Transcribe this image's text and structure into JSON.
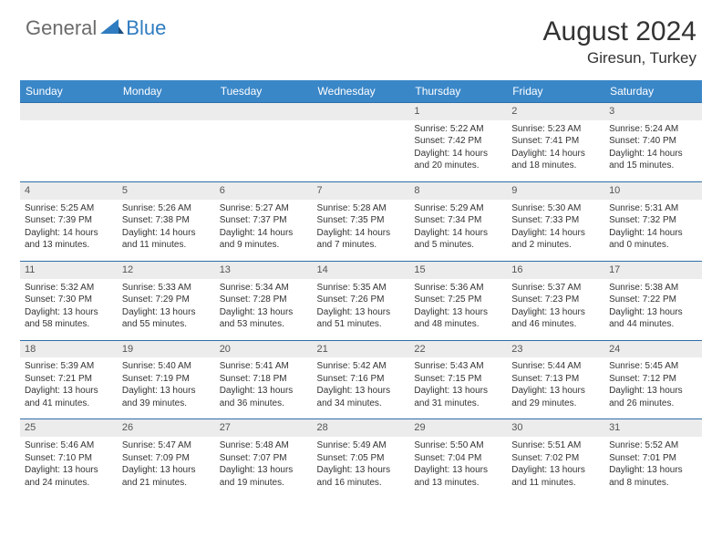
{
  "logo": {
    "general": "General",
    "blue": "Blue"
  },
  "header": {
    "title": "August 2024",
    "location": "Giresun, Turkey"
  },
  "colors": {
    "header_bg": "#3a87c8",
    "week_border": "#2f6ea8",
    "daynum_bg": "#ececec",
    "text": "#333333",
    "logo_gray": "#6b6b6b",
    "logo_blue": "#2f7cc0"
  },
  "day_names": [
    "Sunday",
    "Monday",
    "Tuesday",
    "Wednesday",
    "Thursday",
    "Friday",
    "Saturday"
  ],
  "weeks": [
    [
      null,
      null,
      null,
      null,
      {
        "n": "1",
        "sr": "5:22 AM",
        "ss": "7:42 PM",
        "dl": "14 hours and 20 minutes."
      },
      {
        "n": "2",
        "sr": "5:23 AM",
        "ss": "7:41 PM",
        "dl": "14 hours and 18 minutes."
      },
      {
        "n": "3",
        "sr": "5:24 AM",
        "ss": "7:40 PM",
        "dl": "14 hours and 15 minutes."
      }
    ],
    [
      {
        "n": "4",
        "sr": "5:25 AM",
        "ss": "7:39 PM",
        "dl": "14 hours and 13 minutes."
      },
      {
        "n": "5",
        "sr": "5:26 AM",
        "ss": "7:38 PM",
        "dl": "14 hours and 11 minutes."
      },
      {
        "n": "6",
        "sr": "5:27 AM",
        "ss": "7:37 PM",
        "dl": "14 hours and 9 minutes."
      },
      {
        "n": "7",
        "sr": "5:28 AM",
        "ss": "7:35 PM",
        "dl": "14 hours and 7 minutes."
      },
      {
        "n": "8",
        "sr": "5:29 AM",
        "ss": "7:34 PM",
        "dl": "14 hours and 5 minutes."
      },
      {
        "n": "9",
        "sr": "5:30 AM",
        "ss": "7:33 PM",
        "dl": "14 hours and 2 minutes."
      },
      {
        "n": "10",
        "sr": "5:31 AM",
        "ss": "7:32 PM",
        "dl": "14 hours and 0 minutes."
      }
    ],
    [
      {
        "n": "11",
        "sr": "5:32 AM",
        "ss": "7:30 PM",
        "dl": "13 hours and 58 minutes."
      },
      {
        "n": "12",
        "sr": "5:33 AM",
        "ss": "7:29 PM",
        "dl": "13 hours and 55 minutes."
      },
      {
        "n": "13",
        "sr": "5:34 AM",
        "ss": "7:28 PM",
        "dl": "13 hours and 53 minutes."
      },
      {
        "n": "14",
        "sr": "5:35 AM",
        "ss": "7:26 PM",
        "dl": "13 hours and 51 minutes."
      },
      {
        "n": "15",
        "sr": "5:36 AM",
        "ss": "7:25 PM",
        "dl": "13 hours and 48 minutes."
      },
      {
        "n": "16",
        "sr": "5:37 AM",
        "ss": "7:23 PM",
        "dl": "13 hours and 46 minutes."
      },
      {
        "n": "17",
        "sr": "5:38 AM",
        "ss": "7:22 PM",
        "dl": "13 hours and 44 minutes."
      }
    ],
    [
      {
        "n": "18",
        "sr": "5:39 AM",
        "ss": "7:21 PM",
        "dl": "13 hours and 41 minutes."
      },
      {
        "n": "19",
        "sr": "5:40 AM",
        "ss": "7:19 PM",
        "dl": "13 hours and 39 minutes."
      },
      {
        "n": "20",
        "sr": "5:41 AM",
        "ss": "7:18 PM",
        "dl": "13 hours and 36 minutes."
      },
      {
        "n": "21",
        "sr": "5:42 AM",
        "ss": "7:16 PM",
        "dl": "13 hours and 34 minutes."
      },
      {
        "n": "22",
        "sr": "5:43 AM",
        "ss": "7:15 PM",
        "dl": "13 hours and 31 minutes."
      },
      {
        "n": "23",
        "sr": "5:44 AM",
        "ss": "7:13 PM",
        "dl": "13 hours and 29 minutes."
      },
      {
        "n": "24",
        "sr": "5:45 AM",
        "ss": "7:12 PM",
        "dl": "13 hours and 26 minutes."
      }
    ],
    [
      {
        "n": "25",
        "sr": "5:46 AM",
        "ss": "7:10 PM",
        "dl": "13 hours and 24 minutes."
      },
      {
        "n": "26",
        "sr": "5:47 AM",
        "ss": "7:09 PM",
        "dl": "13 hours and 21 minutes."
      },
      {
        "n": "27",
        "sr": "5:48 AM",
        "ss": "7:07 PM",
        "dl": "13 hours and 19 minutes."
      },
      {
        "n": "28",
        "sr": "5:49 AM",
        "ss": "7:05 PM",
        "dl": "13 hours and 16 minutes."
      },
      {
        "n": "29",
        "sr": "5:50 AM",
        "ss": "7:04 PM",
        "dl": "13 hours and 13 minutes."
      },
      {
        "n": "30",
        "sr": "5:51 AM",
        "ss": "7:02 PM",
        "dl": "13 hours and 11 minutes."
      },
      {
        "n": "31",
        "sr": "5:52 AM",
        "ss": "7:01 PM",
        "dl": "13 hours and 8 minutes."
      }
    ]
  ],
  "labels": {
    "sunrise": "Sunrise: ",
    "sunset": "Sunset: ",
    "daylight": "Daylight: "
  }
}
